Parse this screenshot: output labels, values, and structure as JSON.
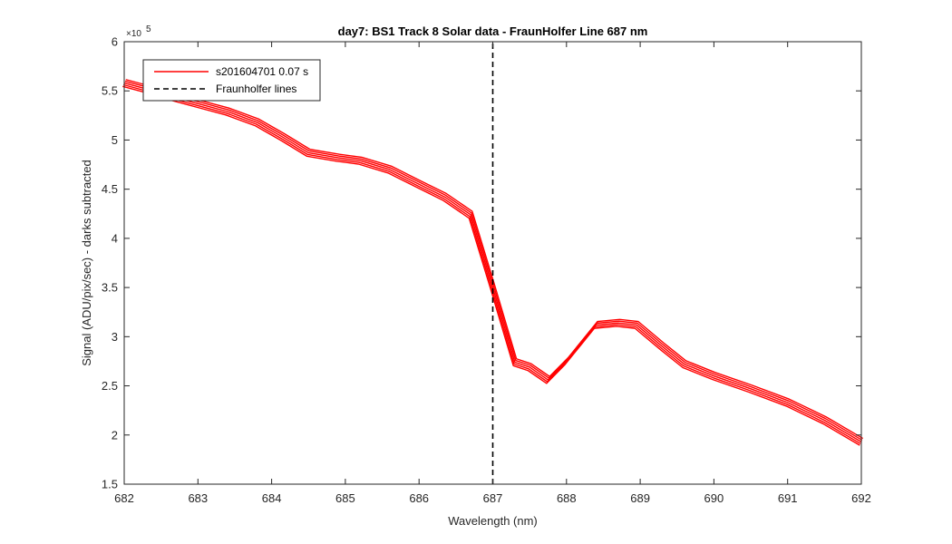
{
  "chart_data": {
    "type": "line",
    "title": "day7: BS1  Track 8 Solar data - FraunHolfer Line 687 nm",
    "xlabel": "Wavelength (nm)",
    "ylabel": "Signal (ADU/pix/sec) - darks subtracted",
    "y_exponent_label": "×10",
    "y_exponent_power": "5",
    "xlim": [
      682,
      692
    ],
    "ylim": [
      1.5,
      6
    ],
    "xticks": [
      682,
      683,
      684,
      685,
      686,
      687,
      688,
      689,
      690,
      691,
      692
    ],
    "yticks": [
      1.5,
      2,
      2.5,
      3,
      3.5,
      4,
      4.5,
      5,
      5.5,
      6
    ],
    "grid": false,
    "legend_position": "top-left",
    "series": [
      {
        "name": "s201604701 0.07 s",
        "color": "#ff0000",
        "style": "solid",
        "x": [
          682.0,
          682.3,
          682.7,
          683.0,
          683.4,
          683.8,
          684.15,
          684.5,
          684.9,
          685.2,
          685.6,
          686.0,
          686.35,
          686.7,
          687.0,
          687.3,
          687.5,
          687.75,
          688.0,
          688.4,
          688.7,
          688.95,
          689.3,
          689.6,
          690.0,
          690.5,
          691.0,
          691.5,
          692.0
        ],
        "y": [
          5.58,
          5.52,
          5.43,
          5.37,
          5.29,
          5.18,
          5.03,
          4.87,
          4.82,
          4.79,
          4.7,
          4.55,
          4.42,
          4.24,
          3.5,
          2.74,
          2.69,
          2.56,
          2.75,
          3.12,
          3.14,
          3.12,
          2.9,
          2.72,
          2.6,
          2.47,
          2.33,
          2.15,
          1.93
        ]
      },
      {
        "name": "Fraunholfer lines",
        "color": "#000000",
        "style": "dashed",
        "x": [
          687,
          687
        ],
        "y": [
          1.5,
          6
        ]
      }
    ]
  }
}
